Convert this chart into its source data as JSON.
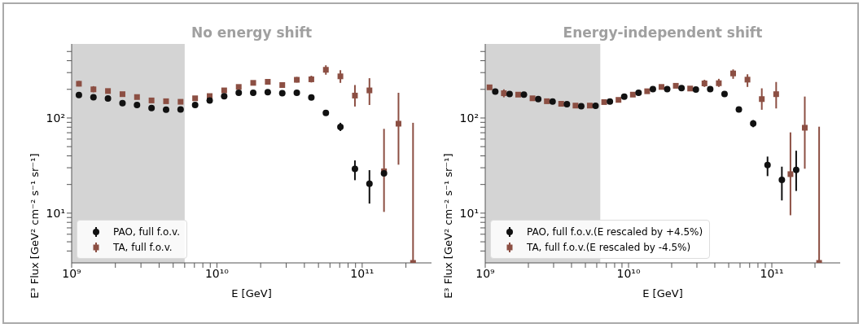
{
  "chart_data": [
    {
      "type": "scatter",
      "title": "No energy shift",
      "xlabel": "E [GeV]",
      "ylabel": "E³ Flux [GeV² cm⁻² s⁻¹ sr⁻¹]",
      "log": "xy",
      "legend": "bottom left",
      "xlim": [
        1000000000.0,
        300000000000.0
      ],
      "ylim": [
        3,
        600
      ],
      "xticks": [
        {
          "value": 1000000000.0,
          "label": "10⁹"
        },
        {
          "value": 2000000000.0,
          "label": null
        },
        {
          "value": 3000000000.0,
          "label": null
        },
        {
          "value": 4000000000.0,
          "label": null
        },
        {
          "value": 5000000000.0,
          "label": null
        },
        {
          "value": 6000000000.0,
          "label": null
        },
        {
          "value": 7000000000.0,
          "label": null
        },
        {
          "value": 8000000000.0,
          "label": null
        },
        {
          "value": 9000000000.0,
          "label": null
        },
        {
          "value": 10000000000.0,
          "label": "10¹⁰"
        },
        {
          "value": 20000000000.0,
          "label": null
        },
        {
          "value": 30000000000.0,
          "label": null
        },
        {
          "value": 40000000000.0,
          "label": null
        },
        {
          "value": 50000000000.0,
          "label": null
        },
        {
          "value": 60000000000.0,
          "label": null
        },
        {
          "value": 70000000000.0,
          "label": null
        },
        {
          "value": 80000000000.0,
          "label": null
        },
        {
          "value": 90000000000.0,
          "label": null
        },
        {
          "value": 100000000000.0,
          "label": "10¹¹"
        },
        {
          "value": 200000000000.0,
          "label": null
        }
      ],
      "yticks": [
        {
          "value": 4,
          "label": null
        },
        {
          "value": 5,
          "label": null
        },
        {
          "value": 6,
          "label": null
        },
        {
          "value": 7,
          "label": null
        },
        {
          "value": 8,
          "label": null
        },
        {
          "value": 9,
          "label": null
        },
        {
          "value": 10,
          "label": "10¹"
        },
        {
          "value": 20,
          "label": null
        },
        {
          "value": 30,
          "label": null
        },
        {
          "value": 40,
          "label": null
        },
        {
          "value": 50,
          "label": null
        },
        {
          "value": 60,
          "label": null
        },
        {
          "value": 70,
          "label": null
        },
        {
          "value": 80,
          "label": null
        },
        {
          "value": 90,
          "label": null
        },
        {
          "value": 100,
          "label": "10²"
        },
        {
          "value": 200,
          "label": null
        },
        {
          "value": 300,
          "label": null
        },
        {
          "value": 400,
          "label": null
        },
        {
          "value": 500,
          "label": null
        }
      ],
      "bands": [
        {
          "axis": "x",
          "from": 1000000000.0,
          "to": 6000000000.0,
          "color": "#d4d4d4"
        }
      ],
      "series": [
        {
          "name": "PAO, full f.o.v.",
          "color": "#111111",
          "marker": "circle",
          "x": [
            1122000000.0,
            1413000000.0,
            1778000000.0,
            2239000000.0,
            2818000000.0,
            3548000000.0,
            4467000000.0,
            5623000000.0,
            7079000000.0,
            8913000000.0,
            11220000000.0,
            14130000000.0,
            17780000000.0,
            22390000000.0,
            28180000000.0,
            35480000000.0,
            44670000000.0,
            56230000000.0,
            70790000000.0,
            89130000000.0,
            112200000000.0,
            141300000000.0
          ],
          "values": [
            174,
            165,
            160,
            143,
            137,
            127,
            122,
            123,
            137,
            153,
            169,
            184,
            184,
            187,
            182,
            184,
            164,
            113,
            80.5,
            29.2,
            20.4,
            26.2
          ],
          "errors": [
            null,
            null,
            null,
            null,
            null,
            null,
            null,
            null,
            null,
            null,
            null,
            null,
            null,
            null,
            null,
            null,
            null,
            [
              106,
              121
            ],
            [
              73,
              89
            ],
            [
              22.2,
              35.8
            ],
            [
              12.6,
              28.3
            ],
            null
          ]
        },
        {
          "name": "TA, full f.o.v.",
          "color": "#8c4f43",
          "marker": "square",
          "x": [
            1122000000.0,
            1413000000.0,
            1778000000.0,
            2239000000.0,
            2818000000.0,
            3548000000.0,
            4467000000.0,
            5623000000.0,
            7079000000.0,
            8913000000.0,
            11220000000.0,
            14130000000.0,
            17780000000.0,
            22390000000.0,
            28180000000.0,
            35480000000.0,
            44670000000.0,
            56230000000.0,
            70790000000.0,
            89130000000.0,
            112200000000.0,
            141300000000.0,
            177800000000.0,
            223900000000.0
          ],
          "values": [
            229,
            200,
            192,
            178,
            166,
            153,
            150,
            148,
            161,
            170,
            195,
            212,
            234,
            240,
            222,
            252,
            255,
            321,
            274,
            172,
            195,
            27.5,
            87.1,
            3
          ],
          "errors": [
            [
              215,
              245
            ],
            [
              186,
              216
            ],
            null,
            null,
            null,
            null,
            null,
            null,
            null,
            null,
            null,
            null,
            null,
            null,
            [
              210,
              236
            ],
            [
              236,
              270
            ],
            [
              236,
              278
            ],
            [
              285,
              358
            ],
            [
              234,
              318
            ],
            [
              132,
              222
            ],
            [
              137,
              262
            ],
            [
              10.3,
              76.9
            ],
            [
              32.3,
              184
            ],
            [
              3,
              89
            ]
          ]
        }
      ]
    },
    {
      "type": "scatter",
      "title": "Energy-independent shift",
      "xlabel": "E [GeV]",
      "ylabel": "E³ Flux [GeV² cm⁻² s⁻¹ sr⁻¹]",
      "log": "xy",
      "legend": "bottom left",
      "xlim": [
        1000000000.0,
        300000000000.0
      ],
      "ylim": [
        3,
        600
      ],
      "xticks": [
        {
          "value": 1000000000.0,
          "label": "10⁹"
        },
        {
          "value": 2000000000.0,
          "label": null
        },
        {
          "value": 3000000000.0,
          "label": null
        },
        {
          "value": 4000000000.0,
          "label": null
        },
        {
          "value": 5000000000.0,
          "label": null
        },
        {
          "value": 6000000000.0,
          "label": null
        },
        {
          "value": 7000000000.0,
          "label": null
        },
        {
          "value": 8000000000.0,
          "label": null
        },
        {
          "value": 9000000000.0,
          "label": null
        },
        {
          "value": 10000000000.0,
          "label": "10¹⁰"
        },
        {
          "value": 20000000000.0,
          "label": null
        },
        {
          "value": 30000000000.0,
          "label": null
        },
        {
          "value": 40000000000.0,
          "label": null
        },
        {
          "value": 50000000000.0,
          "label": null
        },
        {
          "value": 60000000000.0,
          "label": null
        },
        {
          "value": 70000000000.0,
          "label": null
        },
        {
          "value": 80000000000.0,
          "label": null
        },
        {
          "value": 90000000000.0,
          "label": null
        },
        {
          "value": 100000000000.0,
          "label": "10¹¹"
        },
        {
          "value": 200000000000.0,
          "label": null
        }
      ],
      "yticks": [
        {
          "value": 4,
          "label": null
        },
        {
          "value": 5,
          "label": null
        },
        {
          "value": 6,
          "label": null
        },
        {
          "value": 7,
          "label": null
        },
        {
          "value": 8,
          "label": null
        },
        {
          "value": 9,
          "label": null
        },
        {
          "value": 10,
          "label": "10¹"
        },
        {
          "value": 20,
          "label": null
        },
        {
          "value": 30,
          "label": null
        },
        {
          "value": 40,
          "label": null
        },
        {
          "value": 50,
          "label": null
        },
        {
          "value": 60,
          "label": null
        },
        {
          "value": 70,
          "label": null
        },
        {
          "value": 80,
          "label": null
        },
        {
          "value": 90,
          "label": null
        },
        {
          "value": 100,
          "label": "10²"
        },
        {
          "value": 200,
          "label": null
        },
        {
          "value": 300,
          "label": null
        },
        {
          "value": 400,
          "label": null
        },
        {
          "value": 500,
          "label": null
        }
      ],
      "bands": [
        {
          "axis": "x",
          "from": 1000000000.0,
          "to": 6350000000.0,
          "color": "#d4d4d4"
        }
      ],
      "series": [
        {
          "name": "PAO, full f.o.v.(E rescaled by +4.5%)",
          "color": "#111111",
          "marker": "circle",
          "x": [
            1175000000.0,
            1479000000.0,
            1862000000.0,
            2344000000.0,
            2951000000.0,
            3715000000.0,
            4677000000.0,
            5888000000.0,
            7413000000.0,
            9333000000.0,
            11750000000.0,
            14790000000.0,
            18620000000.0,
            23440000000.0,
            29510000000.0,
            37150000000.0,
            46770000000.0,
            58880000000.0,
            74130000000.0,
            93330000000.0,
            117500000000.0,
            147900000000.0
          ],
          "values": [
            190,
            179,
            176,
            158,
            149,
            140,
            133,
            134,
            149,
            168,
            184,
            201,
            201,
            206,
            199,
            201,
            179,
            123,
            87.7,
            32.1,
            22.4,
            28.5
          ],
          "errors": [
            null,
            null,
            null,
            null,
            null,
            null,
            null,
            null,
            null,
            null,
            null,
            null,
            null,
            null,
            null,
            null,
            null,
            [
              117,
              129
            ],
            [
              80,
              95
            ],
            [
              24.5,
              39.3
            ],
            [
              13.6,
              30.8
            ],
            [
              17.1,
              45.3
            ]
          ]
        },
        {
          "name": "TA, full f.o.v.(E rescaled by -4.5%)",
          "color": "#8c4f43",
          "marker": "square",
          "x": [
            1072000000.0,
            1349000000.0,
            1698000000.0,
            2138000000.0,
            2692000000.0,
            3388000000.0,
            4266000000.0,
            5370000000.0,
            6761000000.0,
            8511000000.0,
            10720000000.0,
            13490000000.0,
            16980000000.0,
            21380000000.0,
            26920000000.0,
            33880000000.0,
            42660000000.0,
            53700000000.0,
            67610000000.0,
            85110000000.0,
            107200000000.0,
            134900000000.0,
            169800000000.0,
            213800000000.0
          ],
          "values": [
            210,
            182,
            176,
            161,
            150,
            141,
            135,
            135,
            147,
            155,
            176,
            191,
            212,
            218,
            204,
            231,
            232,
            294,
            253,
            158,
            178,
            25.7,
            79,
            3
          ],
          "errors": [
            [
              200,
              222
            ],
            [
              165,
              200
            ],
            null,
            null,
            null,
            null,
            null,
            null,
            null,
            null,
            null,
            null,
            null,
            [
              208,
              228
            ],
            [
              194,
              214
            ],
            [
              212,
              252
            ],
            [
              212,
              258
            ],
            [
              258,
              324
            ],
            [
              212,
              288
            ],
            [
              122,
              205
            ],
            [
              126,
              239
            ],
            [
              9.5,
              70.6
            ],
            [
              29.3,
              168
            ],
            [
              3,
              81
            ]
          ]
        }
      ]
    }
  ]
}
